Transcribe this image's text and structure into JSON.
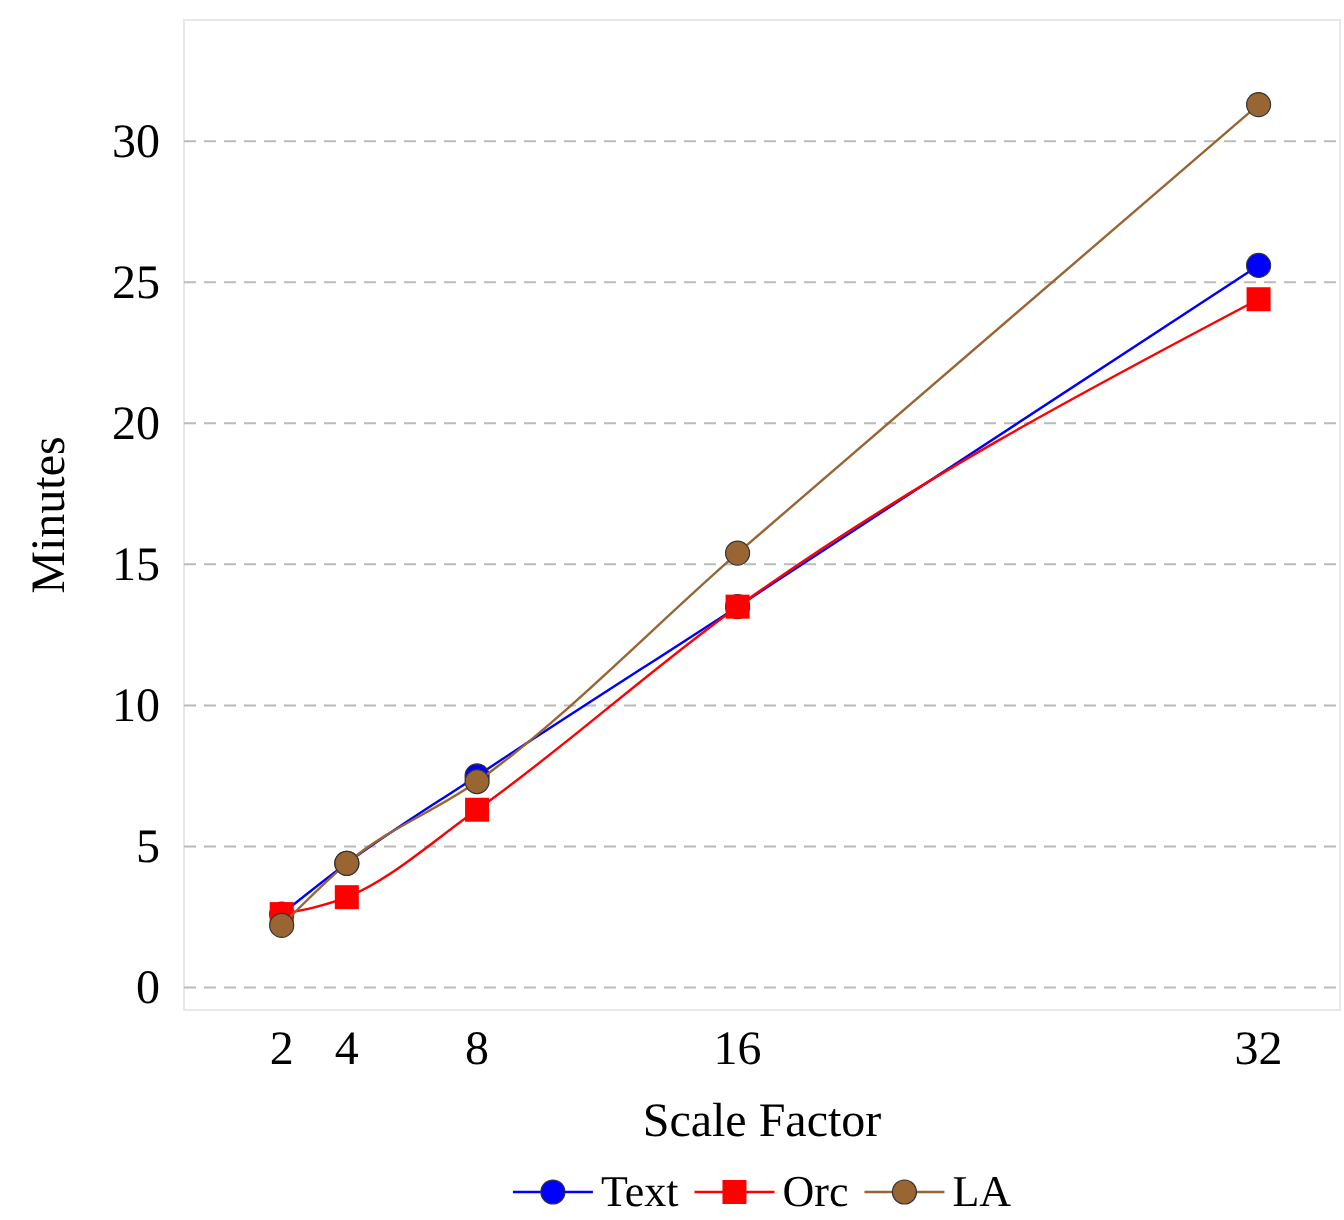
{
  "chart_data": {
    "type": "line",
    "xlabel": "Scale Factor",
    "ylabel": "Minutes",
    "x": [
      2,
      4,
      8,
      16,
      32
    ],
    "series": [
      {
        "name": "Text",
        "color": "#0000ff",
        "marker": "circle",
        "values": [
          2.6,
          4.4,
          7.5,
          13.5,
          25.6
        ]
      },
      {
        "name": "Orc",
        "color": "#ff0000",
        "marker": "square",
        "values": [
          2.6,
          3.2,
          6.3,
          13.5,
          24.4
        ]
      },
      {
        "name": "LA",
        "color": "#996633",
        "marker": "circle",
        "values": [
          2.2,
          4.4,
          7.3,
          15.4,
          31.3
        ]
      }
    ],
    "xlim": [
      -1,
      34.5
    ],
    "ylim": [
      -0.8,
      34.3
    ],
    "xticks": [
      2,
      4,
      8,
      16,
      32
    ],
    "yticks": [
      0,
      5,
      10,
      15,
      20,
      25,
      30
    ],
    "grid": "y",
    "legend": "bottom"
  }
}
